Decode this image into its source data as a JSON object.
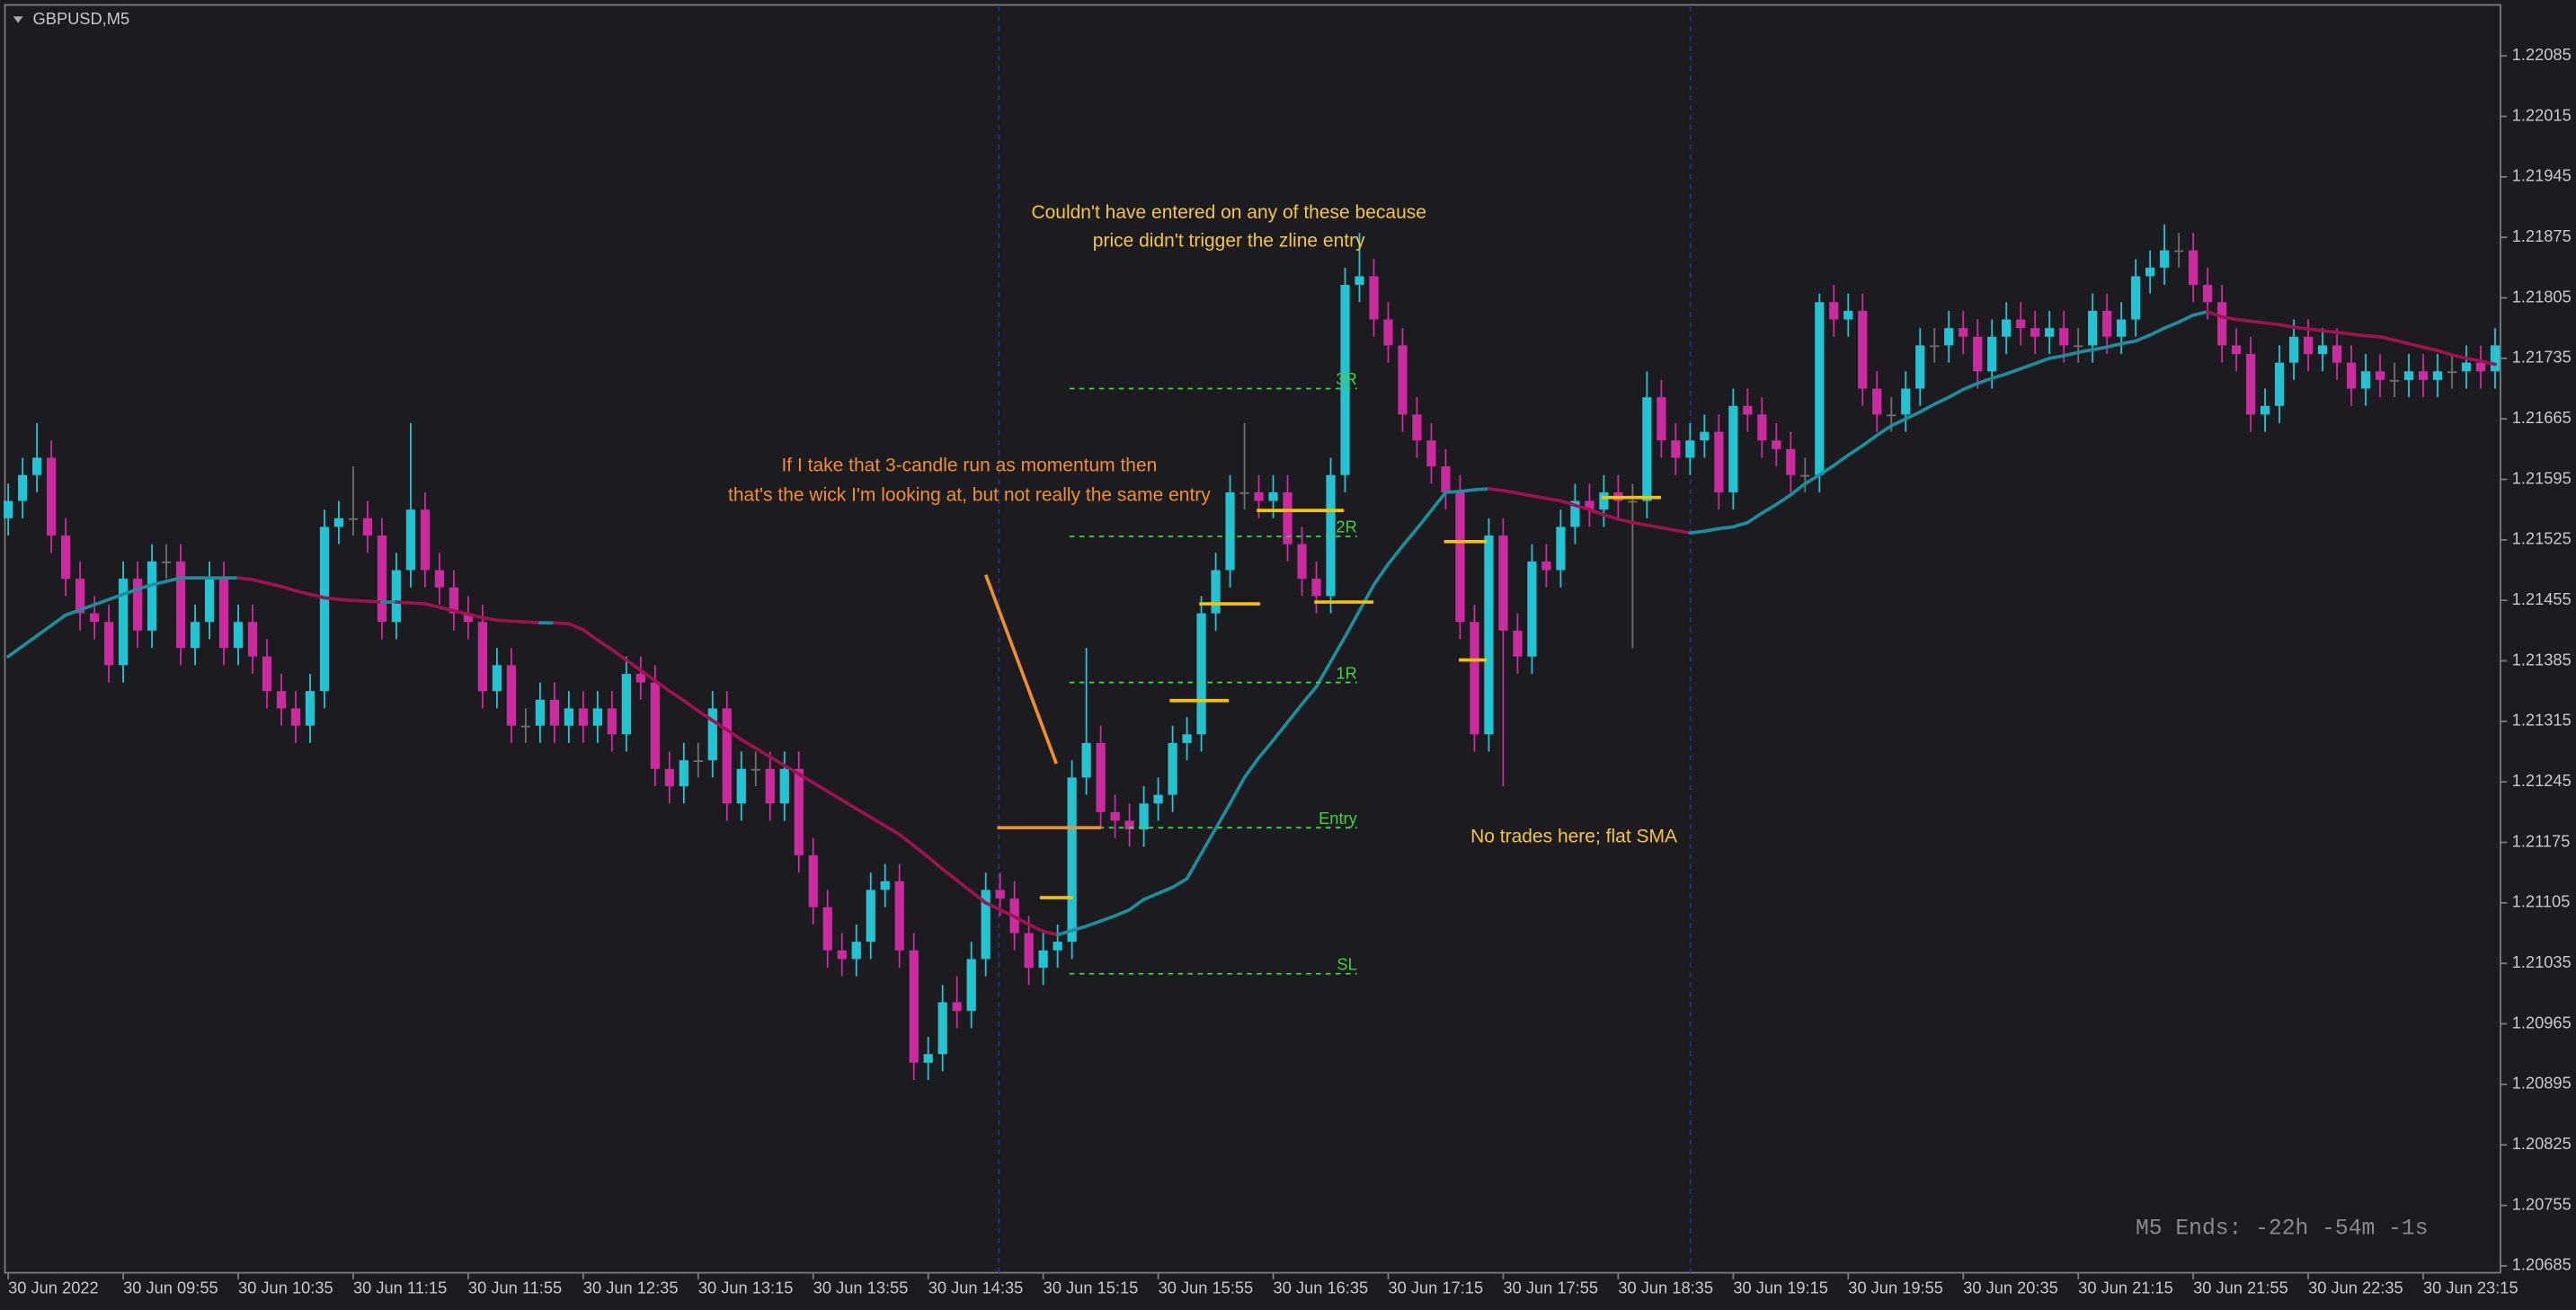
{
  "window_title": "GBPUSD,M5",
  "timer": "M5 Ends: -22h -54m -1s",
  "chart_data": {
    "type": "candlestick",
    "categories": [
      "30 Jun 2022",
      null,
      null,
      null,
      null,
      null,
      null,
      null,
      "30 Jun 09:55",
      null,
      null,
      null,
      null,
      null,
      null,
      null,
      "30 Jun 10:35",
      null,
      null,
      null,
      null,
      null,
      null,
      null,
      "30 Jun 11:15",
      null,
      null,
      null,
      null,
      null,
      null,
      null,
      "30 Jun 11:55",
      null,
      null,
      null,
      null,
      null,
      null,
      null,
      "30 Jun 12:35",
      null,
      null,
      null,
      null,
      null,
      null,
      null,
      "30 Jun 13:15",
      null,
      null,
      null,
      null,
      null,
      null,
      null,
      "30 Jun 13:55",
      null,
      null,
      null,
      null,
      null,
      null,
      null,
      "30 Jun 14:35",
      null,
      null,
      null,
      null,
      null,
      null,
      null,
      "30 Jun 15:15",
      null,
      null,
      null,
      null,
      null,
      null,
      null,
      "30 Jun 15:55",
      null,
      null,
      null,
      null,
      null,
      null,
      null,
      "30 Jun 16:35",
      null,
      null,
      null,
      null,
      null,
      null,
      null,
      "30 Jun 17:15",
      null,
      null,
      null,
      null,
      null,
      null,
      null,
      "30 Jun 17:55",
      null,
      null,
      null,
      null,
      null,
      null,
      null,
      "30 Jun 18:35",
      null,
      null,
      null,
      null,
      null,
      null,
      null,
      "30 Jun 19:15",
      null,
      null,
      null,
      null,
      null,
      null,
      null,
      "30 Jun 19:55",
      null,
      null,
      null,
      null,
      null,
      null,
      null,
      "30 Jun 20:35",
      null,
      null,
      null,
      null,
      null,
      null,
      null,
      "30 Jun 21:15",
      null,
      null,
      null,
      null,
      null,
      null,
      null,
      "30 Jun 21:55",
      null,
      null,
      null,
      null,
      null,
      null,
      null,
      "30 Jun 22:35",
      null,
      null,
      null,
      null,
      null,
      null,
      null,
      "30 Jun 23:15",
      null,
      null,
      null,
      null,
      null
    ],
    "open": [
      1.2155,
      1.2157,
      1.216,
      1.2162,
      1.2153,
      1.2148,
      1.2144,
      1.2143,
      1.2138,
      1.2148,
      1.2142,
      1.215,
      1.215,
      1.214,
      1.2143,
      1.2148,
      1.214,
      1.2143,
      1.2139,
      1.2135,
      1.2133,
      1.2131,
      1.2135,
      1.2154,
      1.2155,
      1.2155,
      1.2153,
      1.2143,
      1.2149,
      1.2156,
      1.2149,
      1.2147,
      1.2144,
      1.2143,
      1.2135,
      1.2138,
      1.2131,
      1.2131,
      1.2134,
      1.2131,
      1.2133,
      1.2131,
      1.2133,
      1.213,
      1.2137,
      1.2136,
      1.2126,
      1.2124,
      1.2127,
      1.2127,
      1.2133,
      1.2122,
      1.2126,
      1.2126,
      1.2122,
      1.2126,
      1.2116,
      1.211,
      1.2105,
      1.2104,
      1.2106,
      1.2112,
      1.2113,
      1.2105,
      1.2092,
      1.2093,
      1.2099,
      1.2098,
      1.2104,
      1.2112,
      1.2111,
      1.2107,
      1.2103,
      1.2105,
      1.2106,
      1.2125,
      1.2129,
      1.2121,
      1.212,
      1.2119,
      1.2122,
      1.2123,
      1.2129,
      1.213,
      1.2144,
      1.2149,
      1.2158,
      1.2158,
      1.2157,
      1.2158,
      1.2152,
      1.2148,
      1.2146,
      1.216,
      1.2182,
      1.2183,
      1.2178,
      1.2175,
      1.2167,
      1.2164,
      1.2161,
      1.2158,
      1.2143,
      1.213,
      1.2153,
      1.2142,
      1.2139,
      1.215,
      1.2149,
      1.2154,
      1.2157,
      1.2156,
      1.2158,
      1.2157,
      1.2157,
      1.2169,
      1.2164,
      1.2162,
      1.2164,
      1.2165,
      1.2158,
      1.2168,
      1.2167,
      1.2164,
      1.2163,
      1.216,
      1.216,
      1.218,
      1.2178,
      1.2179,
      1.217,
      1.2167,
      1.2167,
      1.217,
      1.2175,
      1.2175,
      1.2177,
      1.2176,
      1.2172,
      1.2176,
      1.2178,
      1.2177,
      1.2176,
      1.2177,
      1.2175,
      1.2175,
      1.2179,
      1.2176,
      1.2178,
      1.2183,
      1.2184,
      1.2186,
      1.2186,
      1.2182,
      1.218,
      1.2175,
      1.2174,
      1.2167,
      1.2168,
      1.2173,
      1.2176,
      1.2174,
      1.2175,
      1.2173,
      1.217,
      1.2172,
      1.2171,
      1.2171,
      1.2172,
      1.2171,
      1.2172,
      1.2172,
      1.2173,
      1.2172
    ],
    "high": [
      1.2159,
      1.2162,
      1.2166,
      1.2164,
      1.2155,
      1.215,
      1.2146,
      1.2145,
      1.215,
      1.215,
      1.2152,
      1.2152,
      1.2152,
      1.2145,
      1.215,
      1.215,
      1.2145,
      1.2145,
      1.2141,
      1.2137,
      1.2135,
      1.2137,
      1.2156,
      1.2157,
      1.2161,
      1.2157,
      1.2155,
      1.2151,
      1.2166,
      1.2158,
      1.2151,
      1.2149,
      1.2146,
      1.2145,
      1.214,
      1.214,
      1.2133,
      1.2136,
      1.2136,
      1.2135,
      1.2135,
      1.2135,
      1.2135,
      1.2139,
      1.2139,
      1.2138,
      1.2128,
      1.2129,
      1.2129,
      1.2135,
      1.2135,
      1.2128,
      1.2128,
      1.2128,
      1.2128,
      1.2128,
      1.2118,
      1.2112,
      1.2107,
      1.2108,
      1.2114,
      1.2115,
      1.2115,
      1.2107,
      1.2095,
      1.2101,
      1.2102,
      1.2106,
      1.2114,
      1.2114,
      1.2113,
      1.2109,
      1.2107,
      1.2108,
      1.2127,
      1.214,
      1.2131,
      1.2123,
      1.2122,
      1.2124,
      1.2125,
      1.2131,
      1.2132,
      1.2146,
      1.2151,
      1.216,
      1.2166,
      1.216,
      1.216,
      1.216,
      1.2154,
      1.215,
      1.2162,
      1.2184,
      1.2188,
      1.2185,
      1.218,
      1.2177,
      1.2169,
      1.2166,
      1.2163,
      1.216,
      1.2145,
      1.2155,
      1.2155,
      1.2144,
      1.2152,
      1.2152,
      1.2156,
      1.2159,
      1.2159,
      1.216,
      1.216,
      1.2159,
      1.2172,
      1.2171,
      1.2166,
      1.2166,
      1.2167,
      1.2167,
      1.217,
      1.217,
      1.2169,
      1.2166,
      1.2165,
      1.2162,
      1.2181,
      1.2182,
      1.2181,
      1.2181,
      1.2172,
      1.2169,
      1.2172,
      1.2177,
      1.2177,
      1.2179,
      1.2179,
      1.2178,
      1.2178,
      1.218,
      1.218,
      1.2179,
      1.2179,
      1.2179,
      1.2177,
      1.2181,
      1.2181,
      1.218,
      1.2185,
      1.2186,
      1.2189,
      1.2188,
      1.2188,
      1.2184,
      1.2182,
      1.2177,
      1.2176,
      1.217,
      1.2175,
      1.2178,
      1.2178,
      1.2177,
      1.2177,
      1.2175,
      1.2174,
      1.2174,
      1.2173,
      1.2174,
      1.2174,
      1.2174,
      1.2174,
      1.2175,
      1.2175,
      1.2177
    ],
    "low": [
      1.2153,
      1.2155,
      1.2158,
      1.2151,
      1.2146,
      1.2142,
      1.2141,
      1.2136,
      1.2136,
      1.214,
      1.214,
      1.2148,
      1.2138,
      1.2138,
      1.2141,
      1.2138,
      1.2138,
      1.2137,
      1.2133,
      1.2131,
      1.2129,
      1.2129,
      1.2133,
      1.2152,
      1.2153,
      1.2151,
      1.2141,
      1.2141,
      1.2147,
      1.2147,
      1.2145,
      1.2142,
      1.2141,
      1.2133,
      1.2133,
      1.2129,
      1.2129,
      1.2129,
      1.2129,
      1.2129,
      1.2129,
      1.2129,
      1.2128,
      1.2128,
      1.2134,
      1.2124,
      1.2122,
      1.2122,
      1.2125,
      1.2125,
      1.212,
      1.212,
      1.2124,
      1.212,
      1.212,
      1.2114,
      1.2108,
      1.2103,
      1.2102,
      1.2102,
      1.2104,
      1.211,
      1.2103,
      1.209,
      1.209,
      1.2091,
      1.2096,
      1.2096,
      1.2102,
      1.2109,
      1.2105,
      1.2101,
      1.2101,
      1.2103,
      1.2104,
      1.2123,
      1.2119,
      1.2118,
      1.2117,
      1.2117,
      1.212,
      1.2121,
      1.2127,
      1.2128,
      1.2142,
      1.2147,
      1.2156,
      1.2155,
      1.2155,
      1.215,
      1.2146,
      1.2144,
      1.2144,
      1.2158,
      1.218,
      1.2176,
      1.2173,
      1.2165,
      1.2162,
      1.2159,
      1.2156,
      1.2141,
      1.2128,
      1.2128,
      1.2124,
      1.2137,
      1.2137,
      1.2147,
      1.2147,
      1.2152,
      1.2154,
      1.2154,
      1.2155,
      1.214,
      1.2155,
      1.2162,
      1.216,
      1.216,
      1.2162,
      1.2156,
      1.2156,
      1.2165,
      1.2162,
      1.2161,
      1.2158,
      1.2158,
      1.2158,
      1.2176,
      1.2176,
      1.2168,
      1.2165,
      1.2165,
      1.2165,
      1.2168,
      1.2173,
      1.2173,
      1.2174,
      1.217,
      1.217,
      1.2174,
      1.2175,
      1.2174,
      1.2174,
      1.2173,
      1.2173,
      1.2173,
      1.2174,
      1.2174,
      1.2176,
      1.2181,
      1.2182,
      1.2184,
      1.218,
      1.2178,
      1.2173,
      1.2172,
      1.2165,
      1.2165,
      1.2166,
      1.2171,
      1.2172,
      1.2172,
      1.2171,
      1.2168,
      1.2168,
      1.2169,
      1.2169,
      1.2169,
      1.2169,
      1.2169,
      1.217,
      1.217,
      1.217,
      1.217
    ],
    "close": [
      1.2157,
      1.216,
      1.2162,
      1.2153,
      1.2148,
      1.2144,
      1.2143,
      1.2138,
      1.2148,
      1.2142,
      1.215,
      1.215,
      1.214,
      1.2143,
      1.2148,
      1.214,
      1.2143,
      1.2139,
      1.2135,
      1.2133,
      1.2131,
      1.2135,
      1.2154,
      1.2155,
      1.2155,
      1.2153,
      1.2143,
      1.2149,
      1.2156,
      1.2149,
      1.2147,
      1.2144,
      1.2143,
      1.2135,
      1.2138,
      1.2131,
      1.2131,
      1.2134,
      1.2131,
      1.2133,
      1.2131,
      1.2133,
      1.213,
      1.2137,
      1.2136,
      1.2126,
      1.2124,
      1.2127,
      1.2127,
      1.2133,
      1.2122,
      1.2126,
      1.2126,
      1.2122,
      1.2126,
      1.2116,
      1.211,
      1.2105,
      1.2104,
      1.2106,
      1.2112,
      1.2113,
      1.2105,
      1.2092,
      1.2093,
      1.2099,
      1.2098,
      1.2104,
      1.2112,
      1.2111,
      1.2107,
      1.2103,
      1.2105,
      1.2106,
      1.2125,
      1.2129,
      1.2121,
      1.212,
      1.2119,
      1.2122,
      1.2123,
      1.2129,
      1.213,
      1.2144,
      1.2149,
      1.2158,
      1.2158,
      1.2157,
      1.2158,
      1.2152,
      1.2148,
      1.2146,
      1.216,
      1.2182,
      1.2183,
      1.2178,
      1.2175,
      1.2167,
      1.2164,
      1.2161,
      1.2158,
      1.2143,
      1.213,
      1.2153,
      1.2142,
      1.2139,
      1.215,
      1.2149,
      1.2154,
      1.2157,
      1.2156,
      1.2158,
      1.2157,
      1.2157,
      1.2169,
      1.2164,
      1.2162,
      1.2164,
      1.2165,
      1.2158,
      1.2168,
      1.2167,
      1.2164,
      1.2163,
      1.216,
      1.216,
      1.218,
      1.2178,
      1.2179,
      1.217,
      1.2167,
      1.2167,
      1.217,
      1.2175,
      1.2175,
      1.2177,
      1.2176,
      1.2172,
      1.2176,
      1.2178,
      1.2177,
      1.2176,
      1.2177,
      1.2175,
      1.2175,
      1.2179,
      1.2176,
      1.2178,
      1.2183,
      1.2184,
      1.2186,
      1.2186,
      1.2182,
      1.218,
      1.2175,
      1.2174,
      1.2167,
      1.2168,
      1.2173,
      1.2176,
      1.2174,
      1.2175,
      1.2173,
      1.217,
      1.2172,
      1.2171,
      1.2171,
      1.2172,
      1.2171,
      1.2172,
      1.2172,
      1.2173,
      1.2172,
      1.2175
    ],
    "up_color": "#22c3d3",
    "down_color": "#cc2a9f",
    "flat_color": "#6f6f6f",
    "ylim": [
      1.20677,
      1.22142
    ],
    "yticks": [
      1.20685,
      1.20755,
      1.20825,
      1.20895,
      1.20965,
      1.21035,
      1.21105,
      1.21175,
      1.21245,
      1.21315,
      1.21385,
      1.21455,
      1.21525,
      1.21595,
      1.21665,
      1.21735,
      1.21805,
      1.21875,
      1.21945,
      1.22015,
      1.22085
    ],
    "sma": {
      "rising_color": "#1b8f9c",
      "falling_color": "#a0124f",
      "values": [
        1.2139,
        1.21402,
        1.21414,
        1.21426,
        1.21438,
        1.21444,
        1.2145,
        1.21456,
        1.21462,
        1.21468,
        1.21473,
        1.21477,
        1.21481,
        1.21481,
        1.21481,
        1.21481,
        1.21481,
        1.21479,
        1.21475,
        1.21471,
        1.21466,
        1.21462,
        1.21458,
        1.21456,
        1.21455,
        1.21454,
        1.21453,
        1.21453,
        1.21452,
        1.21451,
        1.21447,
        1.21443,
        1.21439,
        1.21435,
        1.21432,
        1.21431,
        1.2143,
        1.21429,
        1.21429,
        1.21428,
        1.21421,
        1.21409,
        1.21398,
        1.21386,
        1.21374,
        1.21362,
        1.2135,
        1.21339,
        1.21327,
        1.21316,
        1.21305,
        1.21294,
        1.21284,
        1.21274,
        1.21264,
        1.21254,
        1.21244,
        1.21234,
        1.21224,
        1.21214,
        1.21204,
        1.21194,
        1.21184,
        1.21171,
        1.21158,
        1.21144,
        1.21131,
        1.21118,
        1.21105,
        1.21097,
        1.21089,
        1.2108,
        1.21072,
        1.21068,
        1.21073,
        1.21078,
        1.21084,
        1.2109,
        1.21097,
        1.21109,
        1.21116,
        1.21123,
        1.21133,
        1.21162,
        1.21191,
        1.2122,
        1.2125,
        1.21273,
        1.21293,
        1.21314,
        1.21335,
        1.21355,
        1.21384,
        1.21413,
        1.21443,
        1.21473,
        1.21497,
        1.21518,
        1.21538,
        1.21559,
        1.2158,
        1.21581,
        1.21583,
        1.21584,
        1.21582,
        1.21579,
        1.21576,
        1.21573,
        1.2157,
        1.21565,
        1.2156,
        1.21554,
        1.21549,
        1.21545,
        1.21542,
        1.21539,
        1.21536,
        1.21533,
        1.21535,
        1.21538,
        1.2154,
        1.21545,
        1.21556,
        1.21566,
        1.21577,
        1.2159,
        1.216,
        1.21611,
        1.21623,
        1.21634,
        1.21646,
        1.21657,
        1.21665,
        1.21673,
        1.21682,
        1.2169,
        1.21699,
        1.21706,
        1.21712,
        1.21717,
        1.21723,
        1.21729,
        1.21735,
        1.21738,
        1.21742,
        1.21745,
        1.21748,
        1.21752,
        1.21755,
        1.21762,
        1.2177,
        1.21777,
        1.21785,
        1.21789,
        1.21783,
        1.2178,
        1.21778,
        1.21776,
        1.21774,
        1.21771,
        1.21769,
        1.21767,
        1.21765,
        1.21763,
        1.21761,
        1.2176,
        1.21756,
        1.21752,
        1.21748,
        1.21744,
        1.21739,
        1.21735,
        1.21732,
        1.21728
      ]
    },
    "level_color": "#3fd23f",
    "levels": [
      {
        "label": "3R",
        "value": 1.217
      },
      {
        "label": "2R",
        "value": 1.21529
      },
      {
        "label": "1R",
        "value": 1.2136
      },
      {
        "label": "Entry",
        "value": 1.21192
      },
      {
        "label": "SL",
        "value": 1.21023
      }
    ],
    "zlines": {
      "values": [
        1.21192,
        1.21111,
        1.21339,
        1.21451,
        1.21559,
        1.21453,
        1.21523,
        1.21386,
        1.21574
      ],
      "colors": [
        "#f0902a",
        "#f5c400",
        "#f5c400",
        "#f5c400",
        "#f5c400",
        "#f5c400",
        "#f5c400",
        "#f5c400",
        "#f5c400"
      ]
    },
    "annotations": [
      {
        "lines": [
          "Couldn't have entered on any of these because",
          "price didn't trigger the zline entry"
        ],
        "color": "#f3c640"
      },
      {
        "lines": [
          "If I take that 3-candle run as momentum then",
          "that's the wick I'm looking at, but not really the same entry"
        ],
        "color": "#f0902a"
      },
      {
        "lines": [
          "No trades here; flat SMA"
        ],
        "color": "#f3c640"
      }
    ]
  }
}
